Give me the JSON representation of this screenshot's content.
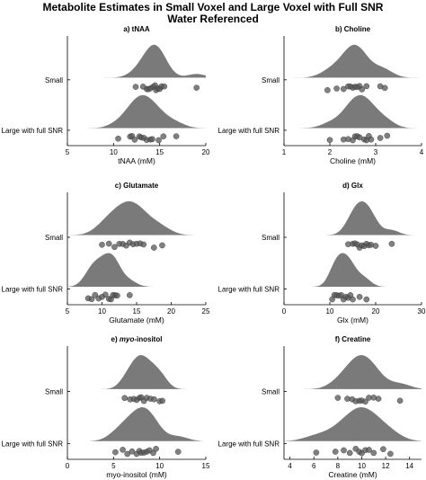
{
  "figure": {
    "title_line1": "Metabolite Estimates in Small Voxel and Large Voxel with Full SNR",
    "title_line2": "Water Referenced"
  },
  "chart_data": [
    {
      "type": "scatter",
      "title": "a) tNAA",
      "xlabel": "tNAA (mM)",
      "xlim": [
        5,
        20
      ],
      "xticks": [
        5,
        10,
        15,
        20
      ],
      "categories": [
        "Small",
        "Large with full SNR"
      ],
      "series": [
        {
          "category": "Small",
          "values": [
            12.4,
            13.2,
            13.6,
            13.8,
            14.0,
            14.3,
            14.5,
            14.6,
            14.8,
            15.0,
            15.2,
            15.5,
            19.0
          ]
        },
        {
          "category": "Large with full SNR",
          "values": [
            10.5,
            11.8,
            12.0,
            12.3,
            12.8,
            13.0,
            13.3,
            13.6,
            14.0,
            14.2,
            14.9,
            15.4,
            16.8
          ]
        }
      ]
    },
    {
      "type": "scatter",
      "title": "b) Choline",
      "xlabel": "Choline (mM)",
      "xlim": [
        1,
        4
      ],
      "xticks": [
        1,
        2,
        3,
        4
      ],
      "categories": [
        "Small",
        "Large with full SNR"
      ],
      "series": [
        {
          "category": "Small",
          "values": [
            1.95,
            2.15,
            2.3,
            2.4,
            2.45,
            2.5,
            2.55,
            2.6,
            2.65,
            2.7,
            2.8,
            3.1,
            3.2
          ]
        },
        {
          "category": "Large with full SNR",
          "values": [
            2.0,
            2.3,
            2.4,
            2.5,
            2.55,
            2.6,
            2.65,
            2.75,
            2.8,
            2.85,
            2.9,
            3.1,
            3.25
          ]
        }
      ]
    },
    {
      "type": "scatter",
      "title": "c) Glutamate",
      "xlabel": "Glutamate (mM)",
      "xlim": [
        5,
        25
      ],
      "xticks": [
        5,
        10,
        15,
        20,
        25
      ],
      "categories": [
        "Small",
        "Large with full SNR"
      ],
      "series": [
        {
          "category": "Small",
          "values": [
            10.0,
            11.0,
            11.8,
            12.5,
            13.0,
            13.5,
            14.0,
            14.5,
            15.0,
            15.5,
            16.0,
            17.5,
            18.7
          ]
        },
        {
          "category": "Large with full SNR",
          "values": [
            8.0,
            8.5,
            9.0,
            9.5,
            10.0,
            10.5,
            11.0,
            11.3,
            11.6,
            11.9,
            12.2,
            14.0
          ]
        }
      ]
    },
    {
      "type": "scatter",
      "title": "d) Glx",
      "xlabel": "Glx (mM)",
      "xlim": [
        0,
        30
      ],
      "xticks": [
        0,
        10,
        20,
        30
      ],
      "categories": [
        "Small",
        "Large with full SNR"
      ],
      "series": [
        {
          "category": "Small",
          "values": [
            14.0,
            15.0,
            15.5,
            16.0,
            16.5,
            17.0,
            17.5,
            18.0,
            18.5,
            19.0,
            20.0,
            23.5
          ]
        },
        {
          "category": "Large with full SNR",
          "values": [
            10.5,
            11.0,
            11.5,
            12.0,
            12.5,
            13.0,
            13.5,
            14.0,
            14.5,
            15.0,
            16.5,
            18.0
          ]
        }
      ]
    },
    {
      "type": "scatter",
      "title_prefix": "e) ",
      "title_italic": "myo",
      "title_suffix": "-inositol",
      "xlabel": "myo-inositol (mM)",
      "xlim": [
        0,
        15
      ],
      "xticks": [
        0,
        5,
        10,
        15
      ],
      "categories": [
        "Small",
        "Large with full SNR"
      ],
      "series": [
        {
          "category": "Small",
          "values": [
            6.2,
            6.8,
            7.2,
            7.5,
            7.8,
            8.0,
            8.3,
            8.6,
            9.0,
            9.4,
            10.0,
            10.3
          ]
        },
        {
          "category": "Large with full SNR",
          "values": [
            5.2,
            6.0,
            6.5,
            7.0,
            7.5,
            7.8,
            8.0,
            8.3,
            8.6,
            8.9,
            9.3,
            9.6,
            12.0
          ]
        }
      ]
    },
    {
      "type": "scatter",
      "title": "f) Creatine",
      "xlabel": "Creatine (mM)",
      "xlim": [
        3.5,
        15
      ],
      "xticks": [
        4,
        6,
        8,
        10,
        12,
        14
      ],
      "categories": [
        "Small",
        "Large with full SNR"
      ],
      "series": [
        {
          "category": "Small",
          "values": [
            8.0,
            8.8,
            9.2,
            9.5,
            9.8,
            10.0,
            10.3,
            10.6,
            11.0,
            11.4,
            13.2
          ]
        },
        {
          "category": "Large with full SNR",
          "values": [
            6.2,
            7.8,
            8.5,
            9.0,
            9.5,
            9.8,
            10.0,
            10.3,
            10.6,
            11.0,
            11.8,
            12.4
          ]
        }
      ]
    }
  ],
  "colors": {
    "density_fill": "#7a7a7a",
    "point_fill": "#555555",
    "axis": "#000000"
  }
}
